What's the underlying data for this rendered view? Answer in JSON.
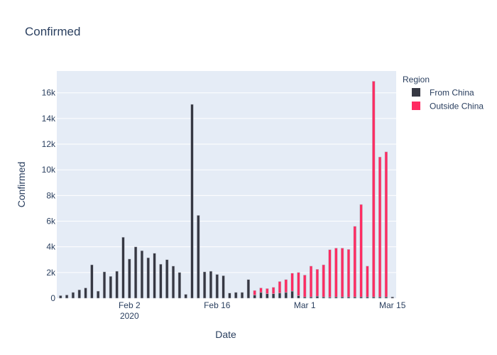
{
  "chart_data": {
    "type": "bar",
    "title": "Confirmed",
    "xlabel": "Date",
    "ylabel": "Confirmed",
    "legend_title": "Region",
    "legend_position": "right",
    "ylim": [
      0,
      17700
    ],
    "yticks": [
      0,
      2000,
      4000,
      6000,
      8000,
      10000,
      12000,
      14000,
      16000
    ],
    "ytick_labels": [
      "0",
      "2k",
      "4k",
      "6k",
      "8k",
      "10k",
      "12k",
      "14k",
      "16k"
    ],
    "xticks": [
      {
        "date": "2020-02-02",
        "label": "Feb 2",
        "sublabel": "2020"
      },
      {
        "date": "2020-02-16",
        "label": "Feb 16",
        "sublabel": ""
      },
      {
        "date": "2020-03-01",
        "label": "Mar 1",
        "sublabel": ""
      },
      {
        "date": "2020-03-15",
        "label": "Mar 15",
        "sublabel": ""
      }
    ],
    "grid": true,
    "dates": [
      "2020-01-22",
      "2020-01-23",
      "2020-01-24",
      "2020-01-25",
      "2020-01-26",
      "2020-01-27",
      "2020-01-28",
      "2020-01-29",
      "2020-01-30",
      "2020-01-31",
      "2020-02-01",
      "2020-02-02",
      "2020-02-03",
      "2020-02-04",
      "2020-02-05",
      "2020-02-06",
      "2020-02-07",
      "2020-02-08",
      "2020-02-09",
      "2020-02-10",
      "2020-02-11",
      "2020-02-12",
      "2020-02-13",
      "2020-02-14",
      "2020-02-15",
      "2020-02-16",
      "2020-02-17",
      "2020-02-18",
      "2020-02-19",
      "2020-02-20",
      "2020-02-21",
      "2020-02-22",
      "2020-02-23",
      "2020-02-24",
      "2020-02-25",
      "2020-02-26",
      "2020-02-27",
      "2020-02-28",
      "2020-02-29",
      "2020-03-01",
      "2020-03-02",
      "2020-03-03",
      "2020-03-04",
      "2020-03-05",
      "2020-03-06",
      "2020-03-07",
      "2020-03-08",
      "2020-03-09",
      "2020-03-10",
      "2020-03-11",
      "2020-03-12",
      "2020-03-13",
      "2020-03-14",
      "2020-03-15"
    ],
    "series": [
      {
        "name": "From China",
        "color": "#363843",
        "values": [
          200,
          250,
          450,
          650,
          800,
          2600,
          550,
          2050,
          1700,
          2100,
          4750,
          3050,
          4000,
          3700,
          3150,
          3500,
          2650,
          3000,
          2500,
          2000,
          300,
          15100,
          6450,
          2050,
          2100,
          1850,
          1750,
          400,
          450,
          450,
          1450,
          250,
          450,
          350,
          350,
          400,
          450,
          550,
          200,
          100,
          100,
          150,
          100,
          80,
          100,
          100,
          100,
          100,
          100,
          100,
          100,
          100,
          100,
          100
        ]
      },
      {
        "name": "Outside China",
        "color": "#ff2b62",
        "values": [
          0,
          0,
          0,
          0,
          0,
          0,
          0,
          0,
          0,
          0,
          0,
          0,
          0,
          0,
          0,
          0,
          0,
          0,
          0,
          0,
          0,
          0,
          0,
          0,
          0,
          0,
          0,
          0,
          0,
          0,
          0,
          350,
          350,
          400,
          500,
          900,
          1000,
          1400,
          1800,
          1700,
          2400,
          2100,
          2500,
          3700,
          3800,
          3800,
          3700,
          5500,
          7200,
          2400,
          16800,
          10900,
          11300,
          0
        ]
      }
    ]
  }
}
